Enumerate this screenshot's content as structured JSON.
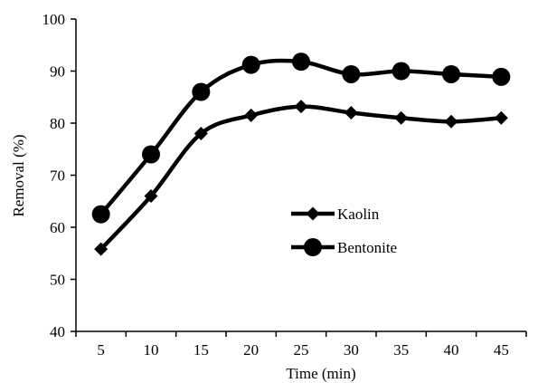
{
  "chart_data": {
    "type": "line",
    "x": [
      5,
      10,
      15,
      20,
      25,
      30,
      35,
      40,
      45
    ],
    "series": [
      {
        "name": "Kaolin",
        "marker": "diamond",
        "values": [
          55.8,
          66.0,
          78.0,
          81.5,
          83.2,
          82.0,
          81.0,
          80.3,
          81.0
        ]
      },
      {
        "name": "Bentonite",
        "marker": "circle",
        "values": [
          62.5,
          74.0,
          86.0,
          91.2,
          91.8,
          89.4,
          90.0,
          89.4,
          88.9
        ]
      }
    ],
    "xlabel": "Time (min)",
    "ylabel": "Removal (%)",
    "xticks": [
      5,
      10,
      15,
      20,
      25,
      30,
      35,
      40,
      45
    ],
    "yticks": [
      40,
      50,
      60,
      70,
      80,
      90,
      100
    ],
    "ylim": [
      40,
      100
    ],
    "grid": false,
    "legend": "center-right",
    "colors": {
      "line": "#000000"
    }
  }
}
